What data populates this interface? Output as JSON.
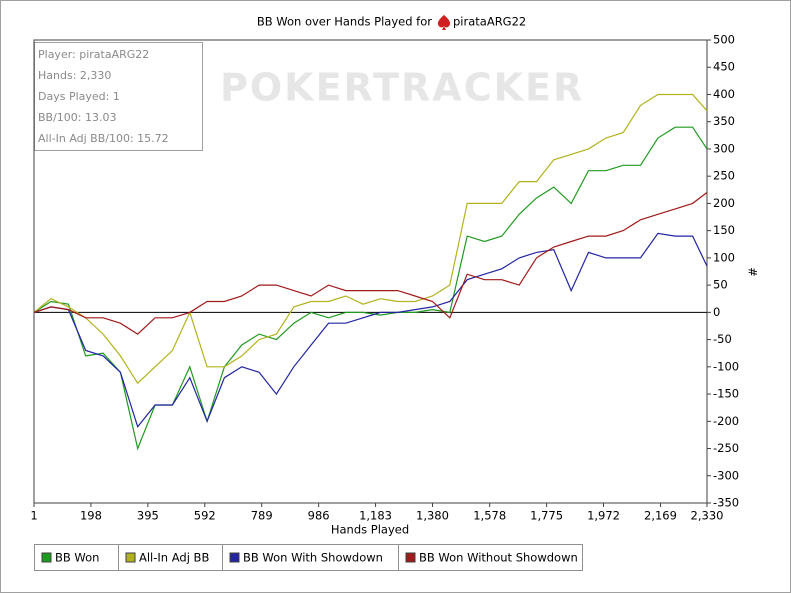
{
  "chart_data": {
    "type": "line",
    "title": "BB Won over Hands Played for",
    "player": "pirataARG22",
    "watermark": "POKERTRACKER",
    "info": [
      "Player: pirataARG22",
      "Hands: 2,330",
      "Days Played: 1",
      "BB/100: 13.03",
      "All-In Adj BB/100: 15.72"
    ],
    "x_label": "Hands Played",
    "y_label": "#",
    "legend": "bottom",
    "x": [
      1,
      60,
      120,
      180,
      240,
      300,
      360,
      420,
      480,
      540,
      600,
      660,
      720,
      780,
      840,
      900,
      960,
      1020,
      1080,
      1140,
      1200,
      1260,
      1320,
      1380,
      1440,
      1500,
      1560,
      1620,
      1680,
      1740,
      1800,
      1860,
      1920,
      1980,
      2040,
      2100,
      2160,
      2220,
      2280,
      2330
    ],
    "series": [
      {
        "name": "BB Won",
        "color": "#1f9a1f",
        "values": [
          0,
          20,
          15,
          -80,
          -75,
          -110,
          -250,
          -170,
          -170,
          -100,
          -200,
          -100,
          -60,
          -40,
          -50,
          -20,
          0,
          -10,
          0,
          0,
          -5,
          0,
          0,
          5,
          0,
          140,
          130,
          140,
          180,
          210,
          230,
          200,
          260,
          260,
          270,
          270,
          320,
          340,
          340,
          300
        ]
      },
      {
        "name": "All-In Adj BB",
        "color": "#b2b21e",
        "values": [
          0,
          25,
          10,
          -10,
          -40,
          -80,
          -130,
          -100,
          -70,
          0,
          -100,
          -100,
          -80,
          -50,
          -40,
          10,
          20,
          20,
          30,
          15,
          25,
          20,
          20,
          30,
          50,
          200,
          200,
          200,
          240,
          240,
          280,
          290,
          300,
          320,
          330,
          380,
          400,
          400,
          400,
          370
        ]
      },
      {
        "name": "BB Won With Showdown",
        "color": "#2424a2",
        "values": [
          0,
          10,
          5,
          -70,
          -80,
          -110,
          -210,
          -170,
          -170,
          -120,
          -200,
          -120,
          -100,
          -110,
          -150,
          -100,
          -60,
          -20,
          -20,
          -10,
          0,
          0,
          5,
          10,
          20,
          60,
          70,
          80,
          100,
          110,
          115,
          40,
          110,
          100,
          100,
          100,
          145,
          140,
          140,
          85
        ]
      },
      {
        "name": "BB Won Without Showdown",
        "color": "#a01a1a",
        "values": [
          0,
          10,
          5,
          -10,
          -10,
          -20,
          -40,
          -10,
          -10,
          0,
          20,
          20,
          30,
          50,
          50,
          40,
          30,
          50,
          40,
          40,
          40,
          40,
          30,
          20,
          -10,
          70,
          60,
          60,
          50,
          100,
          120,
          130,
          140,
          140,
          150,
          170,
          180,
          190,
          200,
          220
        ]
      }
    ],
    "xlim": [
      1,
      2330
    ],
    "xticks": [
      1,
      198,
      395,
      592,
      789,
      986,
      {
        "value": 1183,
        "label": "1,183"
      },
      {
        "value": 1380,
        "label": "1,380"
      },
      {
        "value": 1578,
        "label": "1,578"
      },
      {
        "value": 1775,
        "label": "1,775"
      },
      {
        "value": 1972,
        "label": "1,972"
      },
      {
        "value": 2169,
        "label": "2,169"
      },
      {
        "value": 2330,
        "label": "2,330"
      }
    ],
    "ylim": [
      -350,
      500
    ],
    "yticks": [
      -350,
      -300,
      -250,
      -200,
      -150,
      -100,
      -50,
      0,
      50,
      100,
      150,
      200,
      250,
      300,
      350,
      400,
      450,
      500
    ]
  }
}
